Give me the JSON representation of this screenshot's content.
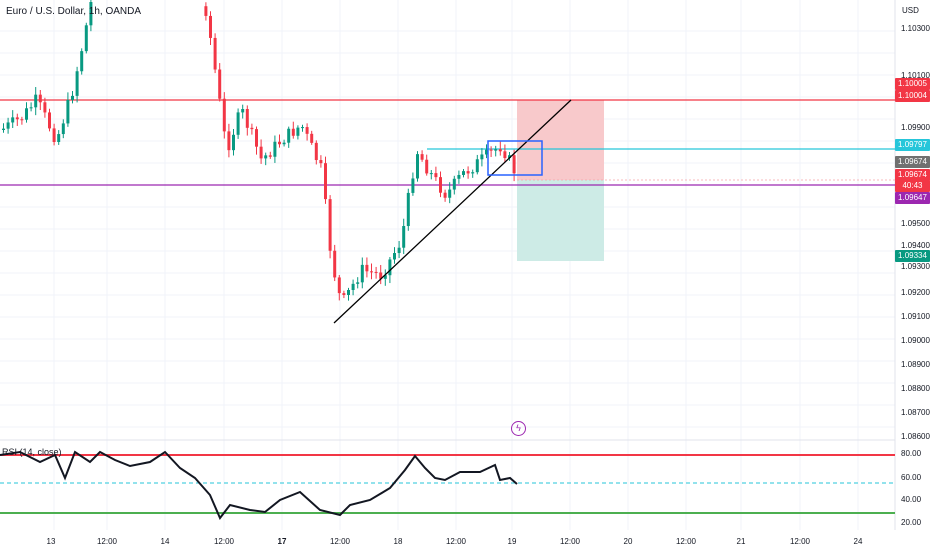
{
  "header": {
    "title": "Euro / U.S. Dollar, 1h, OANDA",
    "currency": "USD"
  },
  "y_axis_ticks": [
    "1.10300",
    "1.10100",
    "1.09900",
    "1.09500",
    "1.09400",
    "1.09300",
    "1.09200",
    "1.09100",
    "1.09000",
    "1.08900",
    "1.08800",
    "1.08700",
    "1.08600"
  ],
  "price_tags": [
    {
      "value": "1.10005",
      "color": "#f23645"
    },
    {
      "value": "1.10004",
      "color": "#f23645"
    },
    {
      "value": "1.09797",
      "color": "#26c6da"
    },
    {
      "value": "1.09674",
      "color": "#707070"
    },
    {
      "value": "1.09674",
      "color": "#f23645"
    },
    {
      "value": "40:43",
      "color": "#f23645"
    },
    {
      "value": "1.09647",
      "color": "#9c27b0"
    },
    {
      "value": "1.09334",
      "color": "#089981"
    }
  ],
  "x_axis_ticks": [
    {
      "label": "13",
      "bold": false
    },
    {
      "label": "12:00",
      "bold": false
    },
    {
      "label": "14",
      "bold": false
    },
    {
      "label": "12:00",
      "bold": false
    },
    {
      "label": "17",
      "bold": true
    },
    {
      "label": "12:00",
      "bold": false
    },
    {
      "label": "18",
      "bold": false
    },
    {
      "label": "12:00",
      "bold": false
    },
    {
      "label": "19",
      "bold": false
    },
    {
      "label": "12:00",
      "bold": false
    },
    {
      "label": "20",
      "bold": false
    },
    {
      "label": "12:00",
      "bold": false
    },
    {
      "label": "21",
      "bold": false
    },
    {
      "label": "12:00",
      "bold": false
    },
    {
      "label": "24",
      "bold": false
    }
  ],
  "rsi": {
    "label": "RSI (14, close)",
    "ticks": [
      "80.00",
      "60.00",
      "40.00",
      "20.00"
    ]
  },
  "alert_icon": "lightning-icon",
  "colors": {
    "up": "#089981",
    "down": "#f23645",
    "resistance": "#f23645",
    "stop_zone": "#f8c9cb",
    "target_zone": "#cdebe6",
    "cyan_line": "#26c6da",
    "purple_line": "#9c27b0",
    "box": "#2962ff"
  }
}
